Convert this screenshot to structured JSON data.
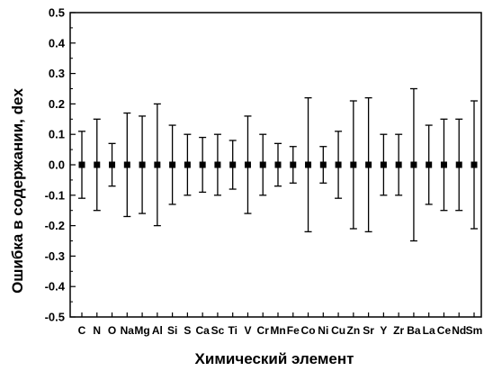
{
  "chart_data": {
    "type": "scatter",
    "title": "",
    "xlabel": "Химический элемент",
    "ylabel": "Ошибка в содержании, dex",
    "ylim": [
      -0.5,
      0.5
    ],
    "yticks": [
      "-0.5",
      "-0.4",
      "-0.3",
      "-0.2",
      "-0.1",
      "0.0",
      "0.1",
      "0.2",
      "0.3",
      "0.4",
      "0.5"
    ],
    "grid": false,
    "categories": [
      "C",
      "N",
      "O",
      "Na",
      "Mg",
      "Al",
      "Si",
      "S",
      "Ca",
      "Sc",
      "Ti",
      "V",
      "Cr",
      "Mn",
      "Fe",
      "Co",
      "Ni",
      "Cu",
      "Zn",
      "Sr",
      "Y",
      "Zr",
      "Ba",
      "La",
      "Ce",
      "Nd",
      "Sm"
    ],
    "series": [
      {
        "values": [
          0,
          0,
          0,
          0,
          0,
          0,
          0,
          0,
          0,
          0,
          0,
          0,
          0,
          0,
          0,
          0,
          0,
          0,
          0,
          0,
          0,
          0,
          0,
          0,
          0,
          0,
          0
        ],
        "errors": [
          0.11,
          0.15,
          0.07,
          0.17,
          0.16,
          0.2,
          0.13,
          0.1,
          0.09,
          0.1,
          0.08,
          0.16,
          0.1,
          0.07,
          0.06,
          0.22,
          0.06,
          0.11,
          0.21,
          0.22,
          0.1,
          0.1,
          0.25,
          0.13,
          0.15,
          0.15,
          0.21
        ]
      }
    ]
  }
}
